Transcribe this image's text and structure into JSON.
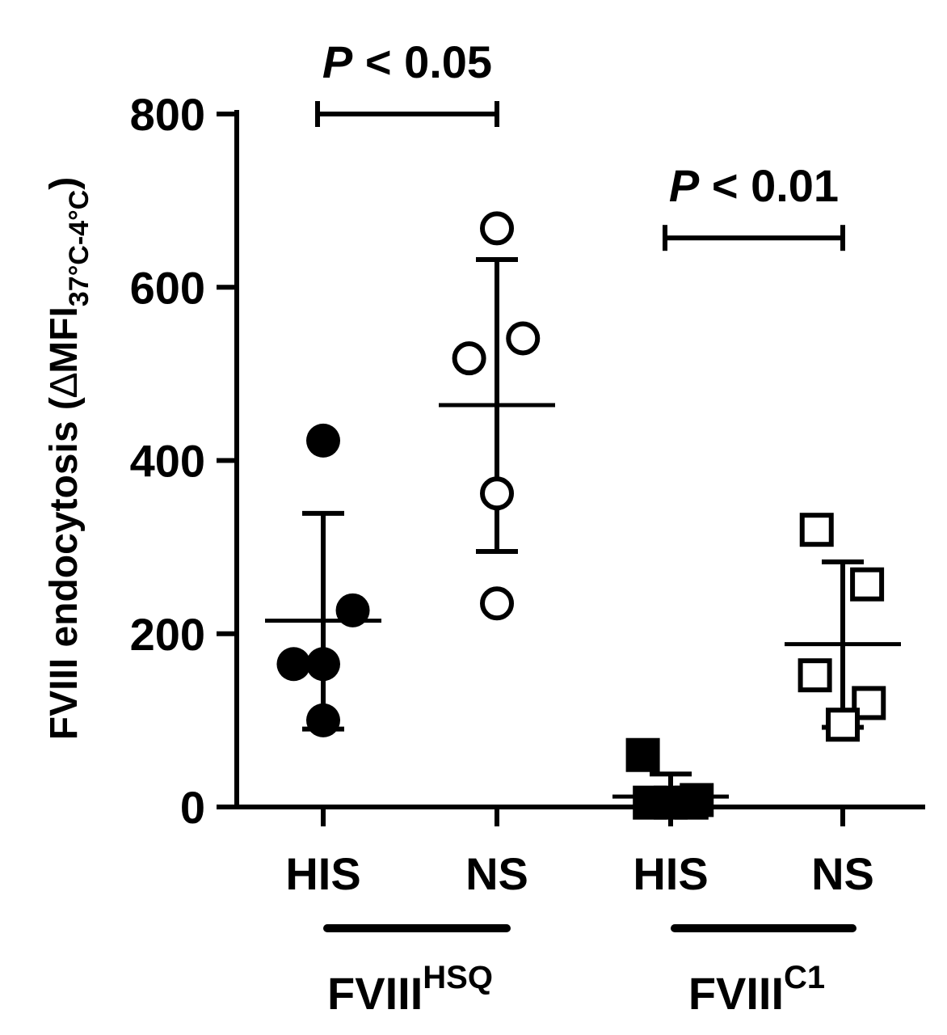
{
  "chart_data": {
    "type": "scatter",
    "ylabel": {
      "main": "FVIII endocytosis (",
      "delta": "∆",
      "mfi": "MFI",
      "sub": "37°C-4°C",
      "close": ")"
    },
    "ylim": [
      0,
      800
    ],
    "yticks": [
      0,
      200,
      400,
      600,
      800
    ],
    "ytick_labels": [
      "0",
      "200",
      "400",
      "600",
      "800"
    ],
    "categories": [
      "HIS",
      "NS",
      "HIS",
      "NS"
    ],
    "groups": [
      {
        "base": "FVIII",
        "sup": "HSQ",
        "categories": [
          0,
          1
        ]
      },
      {
        "base": "FVIII",
        "sup": "C1",
        "categories": [
          2,
          3
        ]
      }
    ],
    "series": [
      {
        "category": 0,
        "marker": "circle",
        "filled": true,
        "points": [
          {
            "dx": 0,
            "y": 423
          },
          {
            "dx": 0.17,
            "y": 227
          },
          {
            "dx": -0.17,
            "y": 165
          },
          {
            "dx": 0,
            "y": 165
          },
          {
            "dx": 0,
            "y": 100
          }
        ],
        "mean": 215,
        "sd_upper": 339,
        "sd_lower": 90
      },
      {
        "category": 1,
        "marker": "circle",
        "filled": false,
        "points": [
          {
            "dx": 0,
            "y": 668
          },
          {
            "dx": 0.15,
            "y": 541
          },
          {
            "dx": -0.16,
            "y": 518
          },
          {
            "dx": 0,
            "y": 362
          },
          {
            "dx": 0,
            "y": 235
          }
        ],
        "mean": 464,
        "sd_upper": 632,
        "sd_lower": 295
      },
      {
        "category": 2,
        "marker": "square",
        "filled": true,
        "points": [
          {
            "dx": -0.16,
            "y": 60
          },
          {
            "dx": -0.12,
            "y": 5
          },
          {
            "dx": 0,
            "y": 5
          },
          {
            "dx": 0.12,
            "y": 5
          },
          {
            "dx": 0.15,
            "y": 8
          }
        ],
        "mean": 12,
        "sd_upper": 38,
        "sd_lower": 0
      },
      {
        "category": 3,
        "marker": "square",
        "filled": false,
        "points": [
          {
            "dx": -0.15,
            "y": 320
          },
          {
            "dx": 0.14,
            "y": 257
          },
          {
            "dx": -0.16,
            "y": 152
          },
          {
            "dx": 0.15,
            "y": 120
          },
          {
            "dx": 0,
            "y": 95
          }
        ],
        "mean": 188,
        "sd_upper": 283,
        "sd_lower": 92
      }
    ],
    "significance": [
      {
        "from": 0,
        "to": 1,
        "p": "P",
        "text": " < 0.05",
        "bracket_y": 800
      },
      {
        "from": 2,
        "to": 3,
        "p": "P",
        "text": " < 0.01",
        "bracket_y": 657
      }
    ],
    "grid": false,
    "legend": "none"
  }
}
